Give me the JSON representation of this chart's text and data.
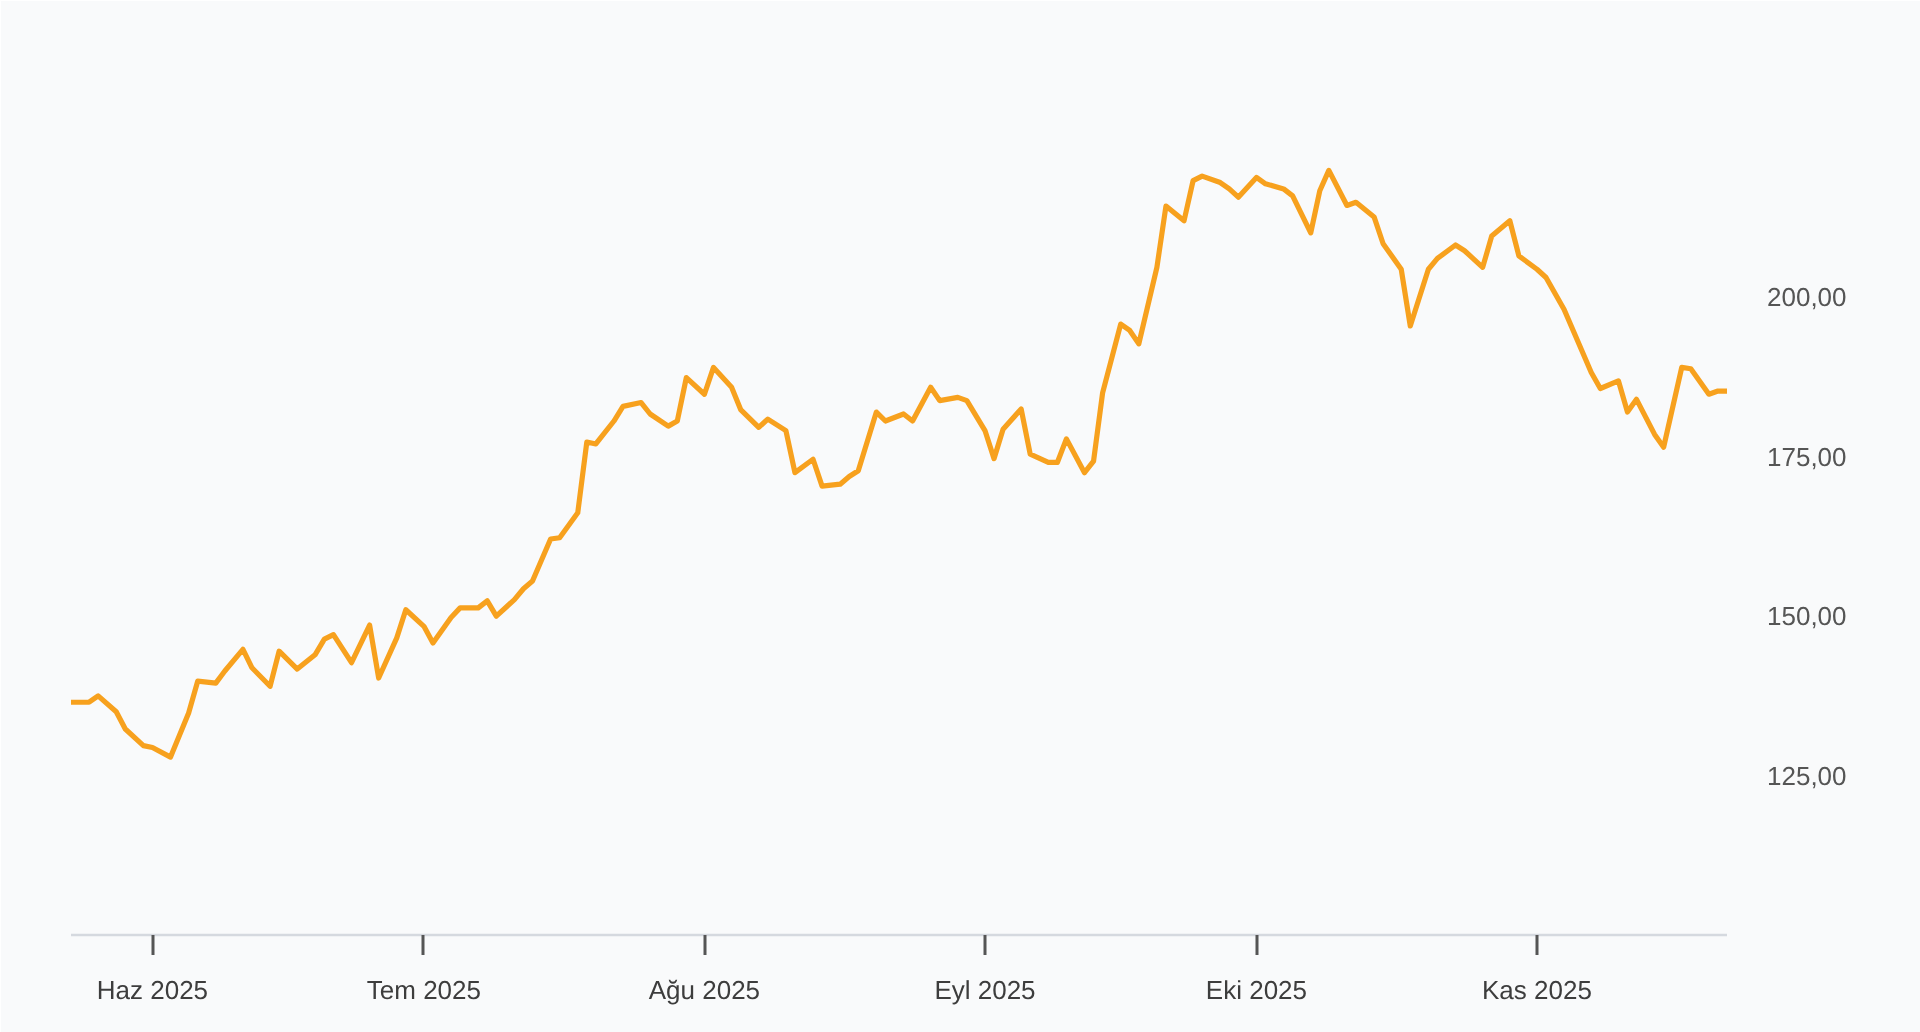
{
  "chart_data": {
    "type": "line",
    "x": [
      "2025-05-23",
      "2025-05-25",
      "2025-05-26",
      "2025-05-28",
      "2025-05-29",
      "2025-05-31",
      "2025-06-01",
      "2025-06-03",
      "2025-06-05",
      "2025-06-06",
      "2025-06-08",
      "2025-06-09",
      "2025-06-11",
      "2025-06-12",
      "2025-06-14",
      "2025-06-15",
      "2025-06-17",
      "2025-06-19",
      "2025-06-20",
      "2025-06-21",
      "2025-06-23",
      "2025-06-25",
      "2025-06-26",
      "2025-06-28",
      "2025-06-29",
      "2025-07-01",
      "2025-07-02",
      "2025-07-04",
      "2025-07-05",
      "2025-07-07",
      "2025-07-08",
      "2025-07-09",
      "2025-07-11",
      "2025-07-12",
      "2025-07-13",
      "2025-07-15",
      "2025-07-16",
      "2025-07-18",
      "2025-07-19",
      "2025-07-20",
      "2025-07-22",
      "2025-07-23",
      "2025-07-25",
      "2025-07-26",
      "2025-07-28",
      "2025-07-29",
      "2025-07-30",
      "2025-08-01",
      "2025-08-02",
      "2025-08-04",
      "2025-08-05",
      "2025-08-07",
      "2025-08-08",
      "2025-08-10",
      "2025-08-11",
      "2025-08-13",
      "2025-08-14",
      "2025-08-16",
      "2025-08-17",
      "2025-08-18",
      "2025-08-20",
      "2025-08-21",
      "2025-08-23",
      "2025-08-24",
      "2025-08-26",
      "2025-08-27",
      "2025-08-29",
      "2025-08-30",
      "2025-09-01",
      "2025-09-02",
      "2025-09-03",
      "2025-09-05",
      "2025-09-06",
      "2025-09-08",
      "2025-09-09",
      "2025-09-10",
      "2025-09-12",
      "2025-09-13",
      "2025-09-14",
      "2025-09-16",
      "2025-09-17",
      "2025-09-18",
      "2025-09-20",
      "2025-09-21",
      "2025-09-23",
      "2025-09-24",
      "2025-09-25",
      "2025-09-27",
      "2025-09-28",
      "2025-09-29",
      "2025-10-01",
      "2025-10-02",
      "2025-10-04",
      "2025-10-05",
      "2025-10-07",
      "2025-10-08",
      "2025-10-09",
      "2025-10-11",
      "2025-10-12",
      "2025-10-14",
      "2025-10-15",
      "2025-10-17",
      "2025-10-18",
      "2025-10-20",
      "2025-10-21",
      "2025-10-23",
      "2025-10-24",
      "2025-10-26",
      "2025-10-27",
      "2025-10-29",
      "2025-10-30",
      "2025-11-01",
      "2025-11-02",
      "2025-11-04",
      "2025-11-05",
      "2025-11-07",
      "2025-11-08",
      "2025-11-10",
      "2025-11-11",
      "2025-11-12",
      "2025-11-14",
      "2025-11-15",
      "2025-11-17",
      "2025-11-18",
      "2025-11-20",
      "2025-11-21",
      "2025-11-22"
    ],
    "values": [
      136.5,
      136.5,
      137.5,
      135.0,
      132.3,
      129.7,
      129.4,
      127.9,
      134.8,
      139.8,
      139.5,
      141.4,
      144.8,
      141.9,
      139.0,
      144.5,
      141.7,
      144.0,
      146.4,
      147.1,
      142.7,
      148.6,
      140.3,
      146.6,
      151.0,
      148.4,
      145.8,
      149.8,
      151.3,
      151.3,
      152.4,
      150.0,
      152.6,
      154.3,
      155.5,
      162.1,
      162.3,
      166.2,
      177.3,
      177.0,
      180.6,
      182.9,
      183.5,
      181.7,
      179.8,
      180.6,
      187.4,
      184.8,
      189.0,
      185.9,
      182.4,
      179.6,
      180.9,
      179.1,
      172.5,
      174.6,
      170.4,
      170.7,
      171.9,
      172.8,
      182.0,
      180.6,
      181.7,
      180.6,
      185.9,
      183.8,
      184.3,
      183.8,
      179.1,
      174.7,
      179.3,
      182.5,
      175.4,
      174.1,
      174.1,
      177.8,
      172.5,
      174.3,
      185.0,
      195.8,
      194.8,
      192.7,
      204.7,
      214.3,
      212.0,
      218.3,
      219.0,
      218.0,
      217.0,
      215.7,
      218.8,
      217.8,
      217.0,
      215.9,
      210.1,
      216.7,
      219.9,
      214.4,
      214.9,
      212.6,
      208.4,
      204.4,
      195.5,
      204.4,
      206.1,
      208.2,
      207.3,
      204.7,
      209.6,
      212.0,
      206.5,
      204.4,
      203.1,
      198.1,
      194.8,
      188.2,
      185.7,
      186.9,
      182.0,
      184.0,
      178.5,
      176.5,
      189.0,
      188.8,
      184.8,
      185.3,
      185.3
    ],
    "color": "#f7a11e",
    "xlim": [
      "2025-05-23",
      "2025-11-22"
    ],
    "ylim": [
      100,
      222
    ],
    "xticks": [
      {
        "value": "2025-06-01",
        "label": "Haz 2025"
      },
      {
        "value": "2025-07-01",
        "label": "Tem 2025"
      },
      {
        "value": "2025-08-01",
        "label": "Ağu 2025"
      },
      {
        "value": "2025-09-01",
        "label": "Eyl 2025"
      },
      {
        "value": "2025-10-01",
        "label": "Eki 2025"
      },
      {
        "value": "2025-11-01",
        "label": "Kas 2025"
      }
    ],
    "yticks": [
      {
        "value": 125,
        "label": "125,00"
      },
      {
        "value": 150,
        "label": "150,00"
      },
      {
        "value": 175,
        "label": "175,00"
      },
      {
        "value": 200,
        "label": "200,00"
      }
    ],
    "grid": false
  }
}
